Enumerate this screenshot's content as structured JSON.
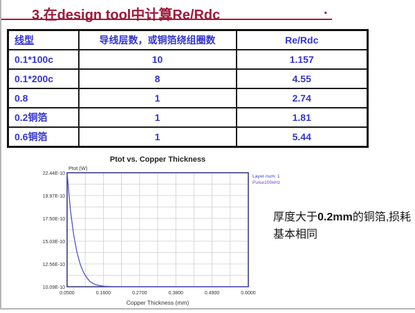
{
  "title": {
    "text": "3.在design tool中计算Re/Rdc",
    "trailing_period": ".",
    "color": "#9e1a3a"
  },
  "table": {
    "headers": [
      "线型",
      "导线层数，或铜箔绕组圈数",
      "Re/Rdc"
    ],
    "rows": [
      [
        "0.1*100c",
        "10",
        "1.157"
      ],
      [
        "0.1*200c",
        "8",
        "4.55"
      ],
      [
        "0.8",
        "1",
        "2.74"
      ],
      [
        "0.2铜箔",
        "1",
        "1.81"
      ],
      [
        "0.6铜箔",
        "1",
        "5.44"
      ]
    ],
    "text_color": "#3434cf",
    "border_color": "#111111"
  },
  "chart_data": {
    "type": "line",
    "title": "Ptot vs. Copper Thickness",
    "ylabel": "Ptot (W)",
    "xlabel": "Copper Thickness (mm)",
    "legend": [
      "Layer num: 1",
      "Pulse100kHz"
    ],
    "legend_position": "right-top",
    "grid": true,
    "xlim": [
      0.05,
      0.6
    ],
    "ylim_e10": [
      10.09,
      22.44
    ],
    "xticks": [
      "0.0500",
      "0.1600",
      "0.2700",
      "0.3800",
      "0.4900",
      "0.6000"
    ],
    "yticks": [
      "22.44E-10",
      "19.97E-10",
      "17.50E-10",
      "15.03E-10",
      "12.56E-10",
      "10.09E-10"
    ],
    "series": [
      {
        "name": "Layer num: 1, Pulse100kHz",
        "x_mm": [
          0.05,
          0.06,
          0.07,
          0.08,
          0.09,
          0.1,
          0.11,
          0.12,
          0.13,
          0.14,
          0.16,
          0.18,
          0.2,
          0.25,
          0.3,
          0.4,
          0.5,
          0.6
        ],
        "y_e10": [
          22.44,
          18.4,
          15.7,
          13.8,
          12.5,
          11.65,
          11.05,
          10.65,
          10.42,
          10.28,
          10.15,
          10.11,
          10.09,
          10.09,
          10.09,
          10.09,
          10.09,
          10.09
        ]
      }
    ],
    "line_color": "#5252cc",
    "legend_colors": [
      "#3c3ccf",
      "#7a3ccf"
    ]
  },
  "annotation": {
    "prefix": "厚度大于",
    "bold": "0.2mm",
    "suffix": "的铜箔,损耗基本相同"
  }
}
